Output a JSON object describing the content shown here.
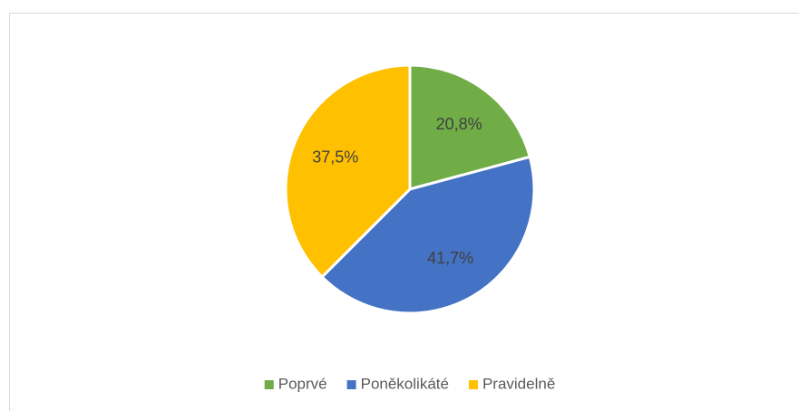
{
  "chart_data": {
    "type": "pie",
    "categories": [
      "Poprvé",
      "Poněkolikáté",
      "Pravidelně"
    ],
    "values": [
      20.8,
      41.7,
      37.5
    ],
    "value_labels": [
      "20,8%",
      "41,7%",
      "37,5%"
    ],
    "colors": [
      "#70ad47",
      "#4472c4",
      "#ffc000"
    ],
    "legend": "bottom"
  }
}
